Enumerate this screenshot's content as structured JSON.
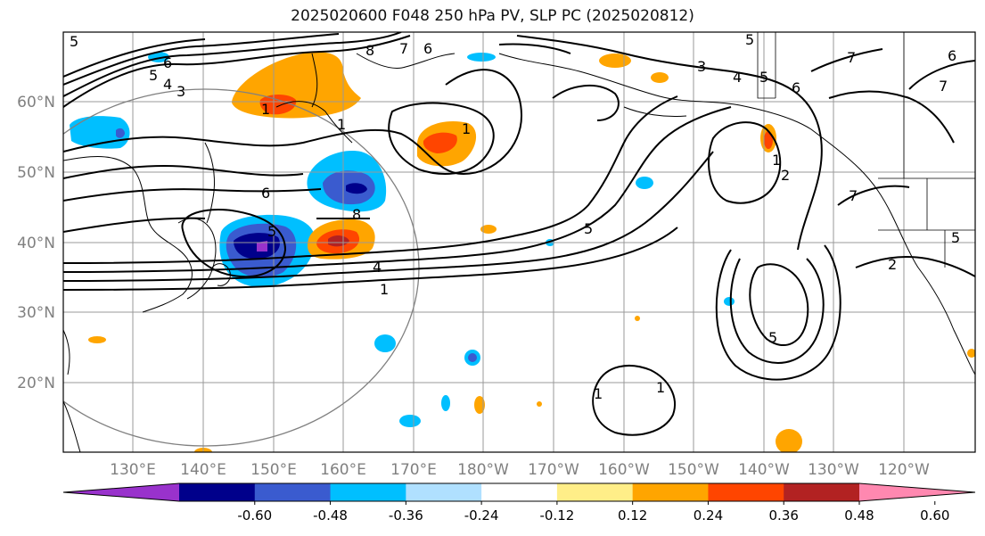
{
  "title": "2025020600 F048 250 hPa PV, SLP PC (2025020812)",
  "lat_labels": [
    "60°N",
    "50°N",
    "40°N",
    "30°N",
    "20°N"
  ],
  "lon_labels": [
    "130°E",
    "140°E",
    "150°E",
    "160°E",
    "170°E",
    "180°W",
    "170°W",
    "160°W",
    "150°W",
    "140°W",
    "130°W",
    "120°W"
  ],
  "colorbar": {
    "colors": [
      "#9932CC",
      "#00008B",
      "#3A5BCF",
      "#00BFFF",
      "#B0E0FF",
      "#FFFFFF",
      "#FFEE88",
      "#FFA500",
      "#FF4500",
      "#B22222",
      "#FF88B0"
    ],
    "tick_labels": [
      "-0.60",
      "-0.48",
      "-0.36",
      "-0.24",
      "-0.12",
      "0.12",
      "0.24",
      "0.36",
      "0.48",
      "0.60"
    ]
  },
  "contour_labels": [
    "5",
    "6",
    "5",
    "4",
    "3",
    "1",
    "7",
    "6",
    "8",
    "1",
    "6",
    "8",
    "1",
    "5",
    "4",
    "1",
    "3",
    "4",
    "5",
    "6",
    "5",
    "7",
    "6",
    "1",
    "2",
    "7",
    "5",
    "5",
    "1",
    "2",
    "7",
    "5",
    "1"
  ],
  "colors": {
    "grid": "#999999",
    "tick_label": "#808080",
    "contour": "#000000",
    "coast": "#000000"
  }
}
